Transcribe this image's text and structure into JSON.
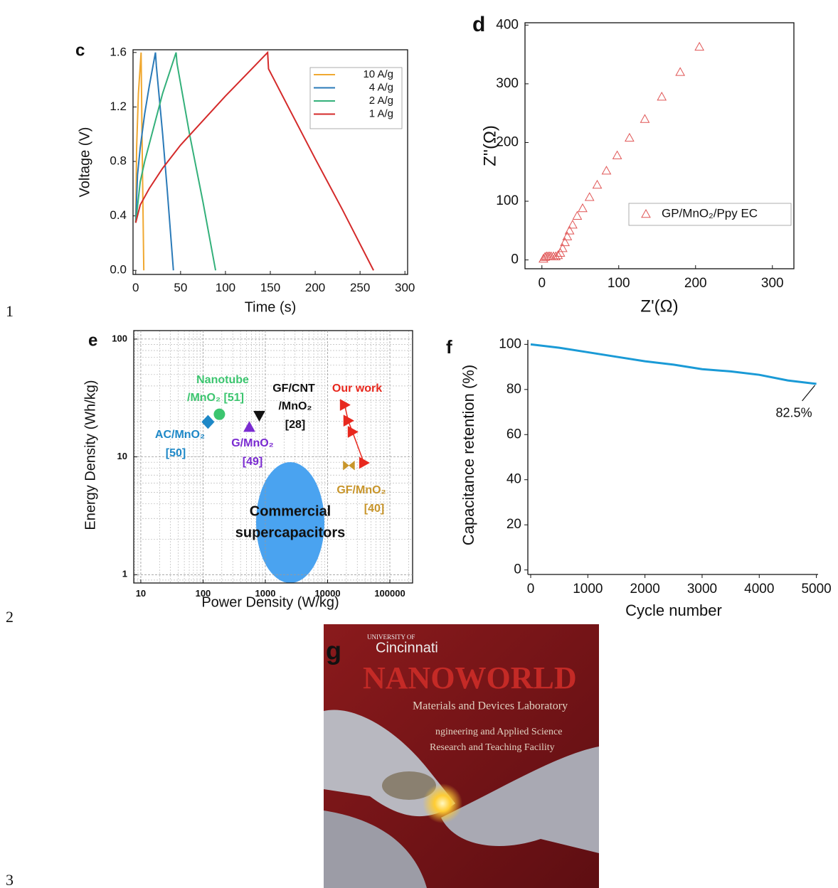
{
  "line_numbers": [
    "1",
    "2",
    "3"
  ],
  "chart_data": [
    {
      "type": "line",
      "panel": "c",
      "xlabel": "Time (s)",
      "ylabel": "Voltage (V)",
      "frame": true,
      "xlim": [
        -3,
        303
      ],
      "ylim": [
        -0.03,
        1.62
      ],
      "xticks": [
        0,
        50,
        100,
        150,
        200,
        250,
        300
      ],
      "yticks": [
        {
          "value": 0,
          "label": "0.0"
        },
        0.4,
        0.8,
        1.2,
        1.6
      ],
      "series": [
        {
          "name": "10 A/g",
          "color": "#f0a830",
          "x": [
            0,
            1,
            3,
            6,
            7,
            9
          ],
          "values": [
            0.35,
            0.9,
            1.3,
            1.6,
            1.0,
            0
          ]
        },
        {
          "name": "4 A/g",
          "color": "#2a7ab8",
          "x": [
            0,
            2,
            5,
            10,
            15,
            22,
            23,
            30,
            35,
            42
          ],
          "values": [
            0.35,
            0.7,
            0.9,
            1.15,
            1.35,
            1.6,
            1.5,
            1.0,
            0.6,
            0
          ]
        },
        {
          "name": "2 A/g",
          "color": "#33b07a",
          "x": [
            0,
            5,
            10,
            20,
            30,
            45,
            46,
            60,
            75,
            89
          ],
          "values": [
            0.35,
            0.65,
            0.8,
            1.05,
            1.3,
            1.6,
            1.52,
            1.0,
            0.5,
            0
          ]
        },
        {
          "name": "1 A/g",
          "color": "#d42a2a",
          "x": [
            0,
            5,
            15,
            30,
            50,
            75,
            100,
            125,
            147,
            148,
            170,
            200,
            230,
            265
          ],
          "values": [
            0.35,
            0.48,
            0.6,
            0.75,
            0.92,
            1.1,
            1.28,
            1.45,
            1.6,
            1.48,
            1.2,
            0.82,
            0.45,
            0
          ]
        }
      ]
    },
    {
      "type": "scatter",
      "panel": "d",
      "xlabel": "Z'(Ω)",
      "ylabel": "Z''(Ω)",
      "frame": true,
      "xlim": [
        -22,
        328
      ],
      "ylim": [
        -15,
        404
      ],
      "xticks": [
        0,
        100,
        200,
        300
      ],
      "yticks": [
        0,
        100,
        200,
        300,
        400
      ],
      "series": [
        {
          "name": "GP/MnO₂/Ppy EC",
          "color": "#e05555",
          "marker": "triangle-open",
          "x": [
            2,
            4,
            6,
            8,
            10,
            12,
            15,
            18,
            21,
            24,
            27,
            30,
            33,
            36,
            40,
            46,
            53,
            62,
            72,
            84,
            98,
            114,
            134,
            156,
            180,
            205
          ],
          "values": [
            2,
            5,
            6,
            6,
            6,
            6,
            6,
            6,
            8,
            12,
            20,
            30,
            40,
            50,
            60,
            75,
            88,
            107,
            128,
            152,
            178,
            208,
            240,
            278,
            320,
            363
          ]
        }
      ]
    },
    {
      "type": "scatter",
      "panel": "e",
      "xlabel": "Power Density (W/kg)",
      "ylabel": "Energy Density (Wh/kg)",
      "frame": true,
      "xscale": "log",
      "yscale": "log",
      "grid": true,
      "xlim": [
        7.7,
        232000
      ],
      "ylim": [
        0.85,
        118
      ],
      "xticks": [
        10,
        100,
        1000,
        10000,
        100000
      ],
      "yticks": [
        1,
        10,
        100
      ],
      "series": [
        {
          "color": "#1e88c7",
          "marker": "diamond",
          "x": [
            120
          ],
          "values": [
            19.8
          ]
        },
        {
          "color": "#3cc56f",
          "marker": "circle",
          "x": [
            183
          ],
          "values": [
            23
          ]
        },
        {
          "color": "#111111",
          "marker": "triangle-down",
          "x": [
            800
          ],
          "values": [
            22.4
          ]
        },
        {
          "color": "#7a2bd1",
          "marker": "triangle-up",
          "x": [
            553
          ],
          "values": [
            17.9
          ]
        },
        {
          "color": "#e8281e",
          "marker": "triangle-right",
          "connect": true,
          "x": [
            18800,
            21400,
            25100,
            38300
          ],
          "values": [
            27.6,
            20.3,
            16.3,
            8.9
          ]
        },
        {
          "color": "#c8952a",
          "marker": "bowtie",
          "x": [
            22000
          ],
          "values": [
            8.45
          ]
        }
      ],
      "annotations": [
        {
          "text": "Nanotube",
          "color": "#3cc56f"
        },
        {
          "text": "/MnO₂ [51]",
          "color": "#3cc56f"
        },
        {
          "text": "GF/CNT",
          "color": "#111111"
        },
        {
          "text": "/MnO₂",
          "color": "#111111"
        },
        {
          "text": "[28]",
          "color": "#111111"
        },
        {
          "text": "Our work",
          "color": "#e8281e"
        },
        {
          "text": "AC/MnO₂",
          "color": "#1e88c7"
        },
        {
          "text": "[50]",
          "color": "#1e88c7"
        },
        {
          "text": "G/MnO₂",
          "color": "#7a2bd1"
        },
        {
          "text": "[49]",
          "color": "#7a2bd1"
        },
        {
          "text": "GF/MnO₂",
          "color": "#c8952a"
        },
        {
          "text": "[40]",
          "color": "#c8952a"
        },
        {
          "text": "Commercial",
          "color": "#111111"
        },
        {
          "text": "supercapacitors",
          "color": "#111111"
        }
      ]
    },
    {
      "type": "line",
      "panel": "f",
      "xlabel": "Cycle number",
      "ylabel": "Capacitance retention (%)",
      "frame": false,
      "xlim": [
        -50,
        5030
      ],
      "ylim": [
        -2,
        102
      ],
      "xticks": [
        0,
        1000,
        2000,
        3000,
        4000,
        5000
      ],
      "yticks": [
        0,
        20,
        40,
        60,
        80,
        100
      ],
      "x": [
        0,
        500,
        1000,
        1500,
        2000,
        2500,
        3000,
        3500,
        4000,
        4500,
        5000
      ],
      "series": [
        {
          "color": "#1a9ad6",
          "values": [
            100,
            98.5,
            96.5,
            94.5,
            92.5,
            91,
            89,
            88,
            86.5,
            84,
            82.5
          ],
          "value_labels": [
            null,
            null,
            null,
            null,
            null,
            null,
            null,
            null,
            null,
            null,
            "82.5%"
          ]
        }
      ]
    }
  ],
  "photo": {
    "panel": "g",
    "texts": [
      "UNIVERSITY OF",
      "Cincinnati",
      "NANOWORLD",
      "Materials and Devices Laboratory",
      "ngineering and Applied Science",
      "Research and Teaching Facility"
    ]
  }
}
